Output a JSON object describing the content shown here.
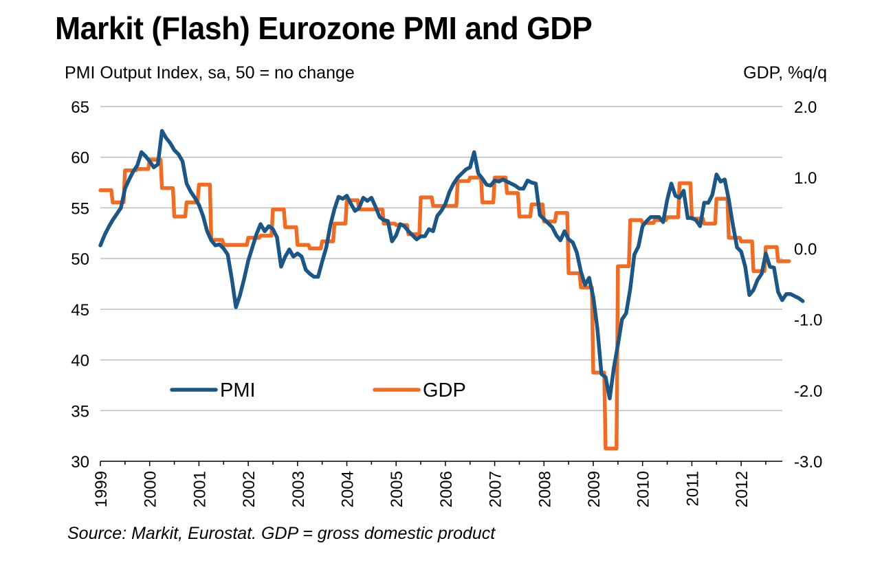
{
  "chart_data": {
    "type": "line",
    "title": "Markit (Flash) Eurozone PMI and GDP",
    "ylabel_left": "PMI Output Index, sa, 50 = no change",
    "ylabel_right": "GDP, %q/q",
    "source": "Source: Markit, Eurostat. GDP = gross domestic product",
    "x_ticks": [
      "1999",
      "2000",
      "2001",
      "2002",
      "2003",
      "2004",
      "2005",
      "2006",
      "2007",
      "2008",
      "2009",
      "2010",
      "2011",
      "2012"
    ],
    "x_range": [
      1999,
      2012.85
    ],
    "y_left": {
      "range": [
        30,
        65
      ],
      "ticks": [
        "65",
        "60",
        "55",
        "50",
        "45",
        "40",
        "35",
        "30"
      ],
      "tick_values": [
        65,
        60,
        55,
        50,
        45,
        40,
        35,
        30
      ]
    },
    "y_right": {
      "range": [
        -3.0,
        2.0
      ],
      "ticks": [
        "2.0",
        "1.0",
        "0.0",
        "-1.0",
        "-2.0",
        "-3.0"
      ],
      "tick_values": [
        2,
        1,
        0,
        -1,
        -2,
        -3
      ]
    },
    "grid": true,
    "legend": [
      {
        "name": "PMI",
        "color": "#1a5686"
      },
      {
        "name": "GDP",
        "color": "#f26b21"
      }
    ],
    "legend_placement": "bottom-left inside plot",
    "series": [
      {
        "name": "PMI",
        "axis": "left",
        "color": "#1a5686",
        "frequency": "monthly",
        "start": "1999-01",
        "values": [
          51.3,
          52.3,
          53.1,
          53.8,
          54.4,
          55.0,
          56.9,
          57.8,
          58.6,
          59.2,
          60.5,
          60.1,
          59.6,
          59.0,
          59.3,
          62.6,
          61.9,
          61.4,
          60.7,
          60.3,
          59.6,
          57.4,
          56.6,
          56.0,
          55.3,
          54.2,
          52.7,
          51.8,
          51.3,
          51.4,
          51.0,
          50.4,
          48.0,
          45.2,
          46.4,
          48.0,
          49.8,
          51.1,
          52.4,
          53.4,
          52.7,
          53.2,
          52.9,
          52.1,
          49.2,
          50.2,
          50.9,
          50.2,
          50.5,
          50.2,
          48.9,
          48.5,
          48.2,
          48.2,
          49.7,
          51.1,
          53.3,
          54.9,
          56.1,
          55.9,
          56.2,
          55.4,
          54.7,
          55.0,
          56.0,
          55.7,
          56.0,
          55.1,
          54.1,
          53.8,
          53.7,
          51.7,
          52.3,
          53.4,
          53.2,
          52.7,
          52.3,
          51.9,
          52.2,
          52.2,
          52.9,
          52.7,
          54.2,
          54.7,
          55.4,
          56.6,
          57.4,
          58.0,
          58.4,
          58.8,
          59.0,
          60.5,
          58.4,
          57.9,
          57.3,
          57.2,
          57.7,
          57.6,
          57.8,
          57.6,
          57.4,
          57.2,
          56.9,
          56.9,
          57.7,
          57.5,
          57.4,
          54.3,
          53.9,
          53.5,
          53.1,
          52.3,
          51.8,
          52.7,
          51.9,
          51.6,
          50.6,
          48.7,
          47.4,
          48.1,
          46.2,
          43.1,
          38.6,
          38.3,
          36.2,
          39.2,
          41.5,
          44.0,
          44.6,
          47.0,
          50.4,
          51.2,
          53.2,
          53.7,
          54.1,
          54.1,
          54.1,
          53.6,
          55.8,
          57.4,
          56.2,
          56.0,
          56.7,
          54.0,
          54.0,
          53.8,
          53.2,
          55.5,
          55.5,
          56.3,
          58.3,
          57.6,
          57.8,
          55.8,
          53.3,
          51.1,
          50.7,
          49.2,
          46.4,
          46.9,
          47.9,
          48.5,
          50.5,
          49.2,
          49.1,
          46.7,
          45.9,
          46.5,
          46.5,
          46.3,
          46.1,
          45.8
        ]
      },
      {
        "name": "GDP",
        "axis": "right",
        "color": "#f26b21",
        "frequency": "quarterly (step)",
        "start": "1999-Q1",
        "values": [
          0.82,
          0.65,
          1.1,
          1.12,
          1.25,
          0.85,
          0.45,
          0.65,
          0.9,
          0.12,
          0.05,
          0.05,
          0.15,
          0.18,
          0.55,
          0.3,
          0.05,
          0.0,
          0.1,
          0.35,
          0.68,
          0.55,
          0.55,
          0.35,
          0.33,
          0.2,
          0.72,
          0.6,
          0.6,
          0.95,
          1.0,
          0.65,
          1.0,
          0.78,
          0.45,
          0.62,
          0.38,
          0.5,
          -0.35,
          -0.55,
          -1.75,
          -2.82,
          -0.25,
          0.4,
          0.36,
          0.4,
          0.44,
          0.92,
          0.42,
          0.35,
          0.7,
          0.15,
          0.1,
          -0.32,
          0.02,
          -0.18
        ]
      }
    ]
  }
}
